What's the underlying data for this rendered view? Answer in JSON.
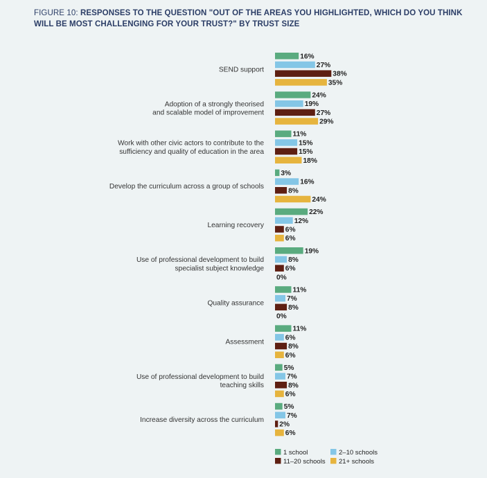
{
  "figure": {
    "number_label": "FIGURE 10:",
    "title": "RESPONSES TO THE QUESTION \"OUT OF THE AREAS YOU HIGHLIGHTED, WHICH DO YOU THINK WILL BE MOST CHALLENGING FOR YOUR TRUST?\" BY TRUST SIZE"
  },
  "chart_data": {
    "type": "bar",
    "orientation": "horizontal",
    "unit": "%",
    "xlim": [
      0,
      40
    ],
    "grid": false,
    "legend_position": "bottom",
    "categories": [
      [
        "SEND support"
      ],
      [
        "Adoption of a strongly theorised",
        "and scalable model of improvement"
      ],
      [
        "Work with other civic actors to contribute to the",
        "sufficiency and quality of education in the area"
      ],
      [
        "Develop the curriculum across a group of schools"
      ],
      [
        "Learning recovery"
      ],
      [
        "Use of professional development to build",
        "specialist subject knowledge"
      ],
      [
        "Quality assurance"
      ],
      [
        "Assessment"
      ],
      [
        "Use of professional development to build",
        "teaching skills"
      ],
      [
        "Increase diversity across the curriculum"
      ]
    ],
    "series": [
      {
        "name": "1 school",
        "color": "#5aab7f",
        "values": [
          16,
          24,
          11,
          3,
          22,
          19,
          11,
          11,
          5,
          5
        ]
      },
      {
        "name": "2–10 schools",
        "color": "#84c6e6",
        "values": [
          27,
          19,
          15,
          16,
          12,
          8,
          7,
          6,
          7,
          7
        ]
      },
      {
        "name": "11–20 schools",
        "color": "#5e1f12",
        "values": [
          38,
          27,
          15,
          8,
          6,
          6,
          8,
          8,
          8,
          2
        ]
      },
      {
        "name": "21+ schools",
        "color": "#e6b43e",
        "values": [
          35,
          29,
          18,
          24,
          6,
          0,
          0,
          6,
          6,
          6
        ]
      }
    ]
  }
}
